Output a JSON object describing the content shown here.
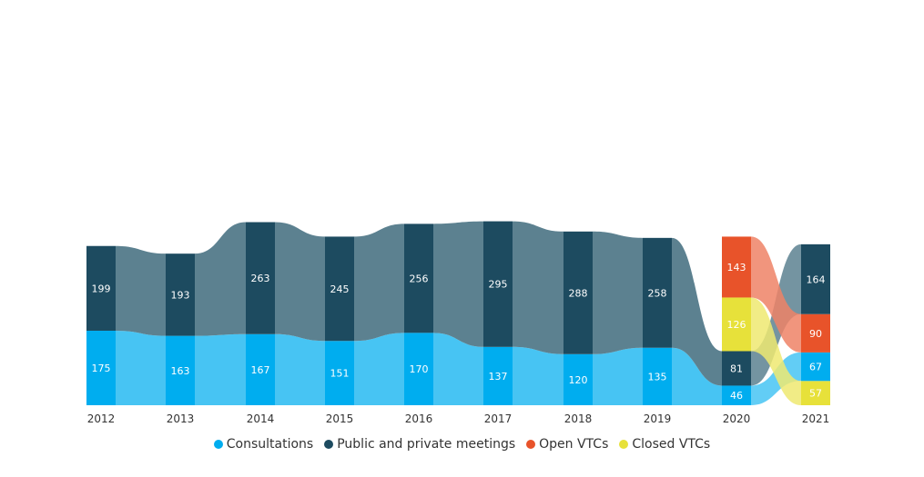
{
  "chart_data": {
    "type": "bar",
    "categories": [
      "2012",
      "2013",
      "2014",
      "2015",
      "2016",
      "2017",
      "2018",
      "2019",
      "2020",
      "2021"
    ],
    "series": [
      {
        "name": "Consultations",
        "color": "#00adef",
        "values": [
          175,
          163,
          167,
          151,
          170,
          137,
          120,
          135,
          46,
          67
        ]
      },
      {
        "name": "Public and private meetings",
        "color": "#1d4b60",
        "values": [
          199,
          193,
          263,
          245,
          256,
          295,
          288,
          258,
          81,
          164
        ]
      },
      {
        "name": "Open VTCs",
        "color": "#e8532a",
        "values": [
          null,
          null,
          null,
          null,
          null,
          null,
          null,
          null,
          143,
          90
        ]
      },
      {
        "name": "Closed VTCs",
        "color": "#e7e13a",
        "values": [
          null,
          null,
          null,
          null,
          null,
          null,
          null,
          null,
          126,
          57
        ]
      }
    ],
    "stacked": true,
    "flow_between_bars": true,
    "legend_position": "bottom-center",
    "grid": false
  }
}
